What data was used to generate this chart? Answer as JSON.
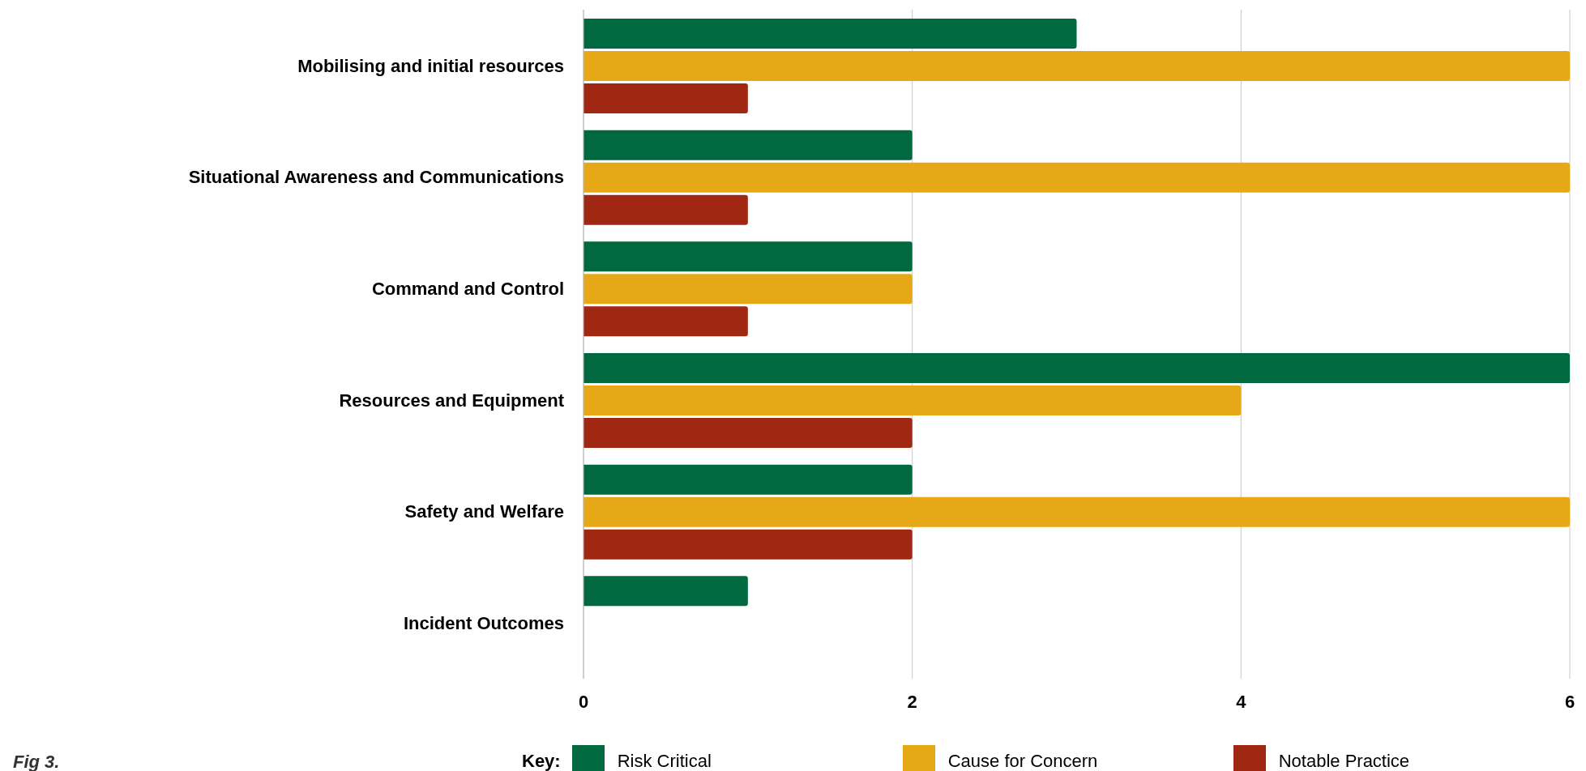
{
  "chart_data": {
    "type": "bar",
    "orientation": "horizontal",
    "categories": [
      "Mobilising and initial resources",
      "Situational Awareness and Communications",
      "Command and Control",
      "Resources and Equipment",
      "Safety and Welfare",
      "Incident Outcomes"
    ],
    "series": [
      {
        "name": "Risk Critical",
        "color": "#006940",
        "values": [
          3,
          2,
          2,
          6,
          2,
          1
        ]
      },
      {
        "name": "Cause for Concern",
        "color": "#e6a817",
        "values": [
          6,
          6,
          2,
          4,
          6,
          0
        ]
      },
      {
        "name": "Notable Practice",
        "color": "#a02712",
        "values": [
          1,
          1,
          1,
          2,
          2,
          0
        ]
      }
    ],
    "xlim": [
      0,
      6
    ],
    "xticks": [
      0,
      2,
      4,
      6
    ],
    "grid": "x",
    "legend": "bottom",
    "legend_title": "Key:",
    "annotations": [
      "Fig 3."
    ]
  }
}
